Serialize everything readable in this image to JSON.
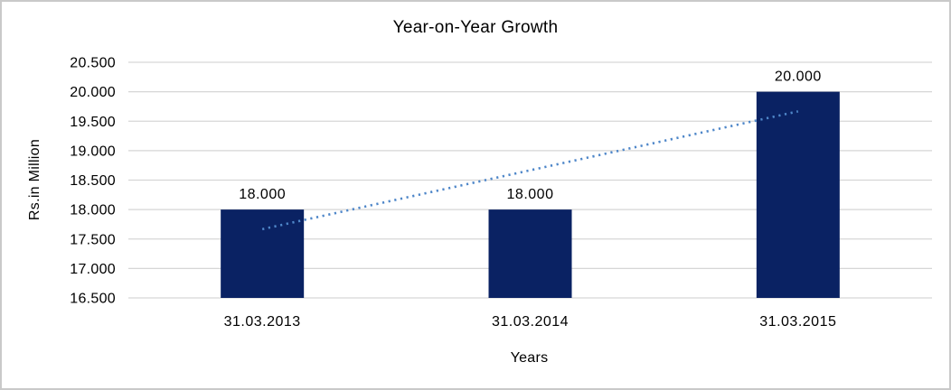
{
  "chart_data": {
    "type": "bar",
    "title": "Year-on-Year Growth",
    "xlabel": "Years",
    "ylabel": "Rs.in Million",
    "categories": [
      "31.03.2013",
      "31.03.2014",
      "31.03.2015"
    ],
    "values": [
      18.0,
      18.0,
      20.0
    ],
    "data_labels": [
      "18.000",
      "18.000",
      "20.000"
    ],
    "y_ticks": [
      16.5,
      17.0,
      17.5,
      18.0,
      18.5,
      19.0,
      19.5,
      20.0,
      20.5
    ],
    "y_tick_labels": [
      "16.500",
      "17.000",
      "17.500",
      "18.000",
      "18.500",
      "19.000",
      "19.500",
      "20.000",
      "20.500"
    ],
    "ylim": [
      16.5,
      20.5
    ],
    "grid": true,
    "legend": "none",
    "trendline": {
      "type": "linear",
      "style": "dotted",
      "points": [
        [
          1,
          17.667
        ],
        [
          3,
          19.667
        ]
      ]
    },
    "colors": {
      "bar": "#0a2263",
      "trendline": "#4f87c9",
      "gridline": "#d6d6d6",
      "text": "#000000",
      "frame_border": "#c9c9c9",
      "background": "#ffffff"
    }
  }
}
